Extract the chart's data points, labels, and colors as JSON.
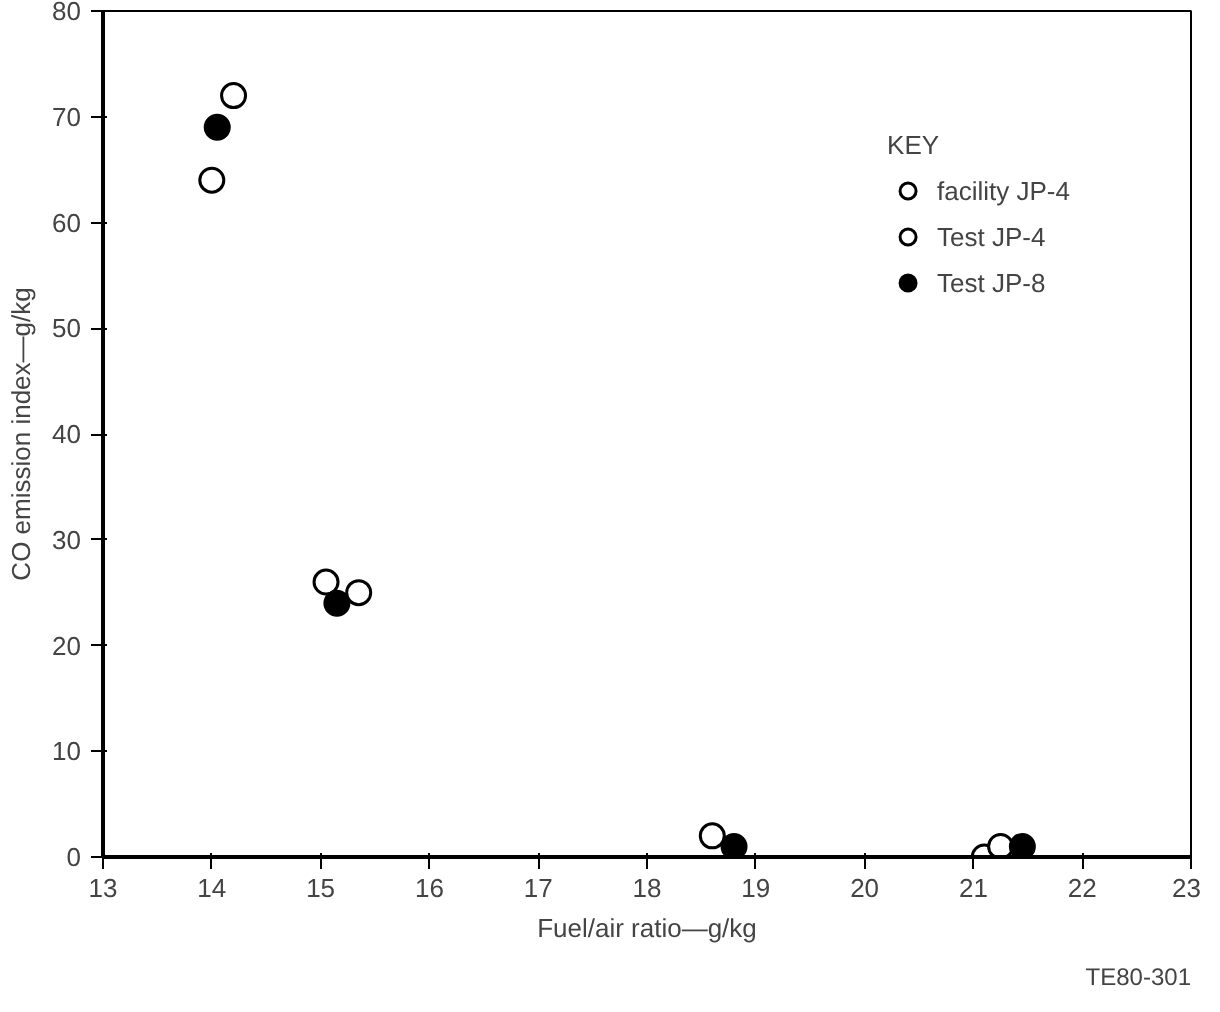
{
  "chart_data": {
    "type": "scatter",
    "xlabel": "Fuel/air ratio—g/kg",
    "ylabel": "CO emission index—g/kg",
    "legend_title": "KEY",
    "legend": "top right",
    "grid": false,
    "marker": "circle",
    "xlim": [
      13,
      23
    ],
    "xticks": [
      13,
      14,
      15,
      16,
      17,
      18,
      19,
      20,
      21,
      22,
      23
    ],
    "ylim": [
      0,
      80
    ],
    "yticks": [
      0,
      10,
      20,
      30,
      40,
      50,
      60,
      70,
      80
    ],
    "annotations": [
      "TE80-301"
    ],
    "series": [
      {
        "name": "facility JP-4",
        "color": "#ffffff",
        "x": [
          14.0,
          15.35,
          18.6,
          21.1
        ],
        "values": [
          64,
          25,
          2,
          0
        ]
      },
      {
        "name": "Test JP-4",
        "color": "#ffffff",
        "x": [
          14.2,
          15.05,
          21.25
        ],
        "values": [
          72,
          26,
          1
        ]
      },
      {
        "name": "Test JP-8",
        "color": "#000000",
        "x": [
          14.05,
          15.15,
          18.8,
          21.45
        ],
        "values": [
          69,
          24,
          1,
          1
        ]
      }
    ]
  }
}
